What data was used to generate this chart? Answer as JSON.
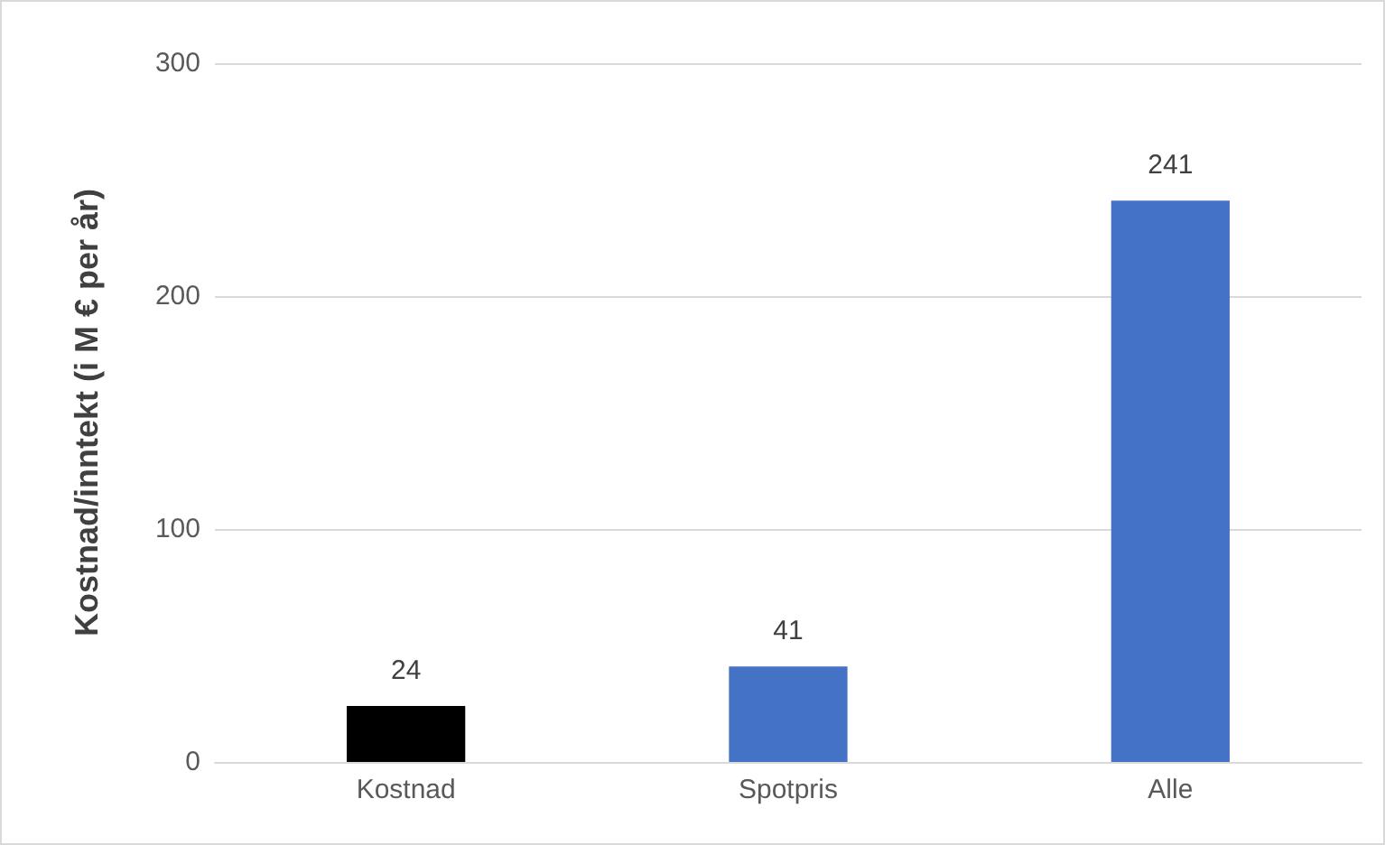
{
  "chart_data": {
    "type": "bar",
    "ylabel": "Kostnad/inntekt (i M € per år)",
    "categories": [
      "Kostnad",
      "Spotpris",
      "Alle"
    ],
    "values": [
      24,
      41,
      241
    ],
    "colors": [
      "#000000",
      "#4472c4",
      "#4472c4"
    ],
    "ylim": [
      0,
      300
    ],
    "yticks": [
      0,
      100,
      200,
      300
    ],
    "grid": "y",
    "data_labels": true
  }
}
